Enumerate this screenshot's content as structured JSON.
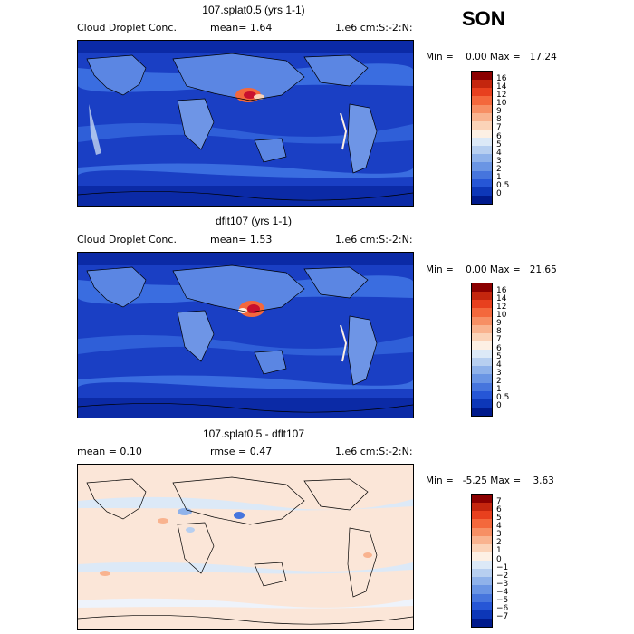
{
  "season": "SON",
  "panels": [
    {
      "title": "107.splat0.5 (yrs 1-1)",
      "left_label": "Cloud Droplet Conc.",
      "stat": "mean=   1.64",
      "units": "1.e6 cm:S:-2:N:",
      "minmax": "Min =    0.00 Max =   17.24",
      "colorbar": {
        "labels": [
          "16",
          "14",
          "12",
          "10",
          "9",
          "8",
          "7",
          "6",
          "5",
          "4",
          "3",
          "2",
          "1",
          "0.5",
          "0"
        ],
        "colors": [
          "#8b0000",
          "#c4260e",
          "#e8401e",
          "#f4683c",
          "#f78f64",
          "#f9b38f",
          "#fbd3b8",
          "#fdf0e4",
          "#dce9f7",
          "#b7cff0",
          "#8fb2ea",
          "#6a95e4",
          "#4675dd",
          "#2656d6",
          "#0d37b8",
          "#001a8c"
        ]
      }
    },
    {
      "title": "dflt107 (yrs 1-1)",
      "left_label": "Cloud Droplet Conc.",
      "stat": "mean=   1.53",
      "units": "1.e6 cm:S:-2:N:",
      "minmax": "Min =    0.00 Max =   21.65",
      "colorbar": {
        "labels": [
          "16",
          "14",
          "12",
          "10",
          "9",
          "8",
          "7",
          "6",
          "5",
          "4",
          "3",
          "2",
          "1",
          "0.5",
          "0"
        ],
        "colors": [
          "#8b0000",
          "#c4260e",
          "#e8401e",
          "#f4683c",
          "#f78f64",
          "#f9b38f",
          "#fbd3b8",
          "#fdf0e4",
          "#dce9f7",
          "#b7cff0",
          "#8fb2ea",
          "#6a95e4",
          "#4675dd",
          "#2656d6",
          "#0d37b8",
          "#001a8c"
        ]
      }
    },
    {
      "title": "107.splat0.5 - dflt107",
      "left_label": "mean =    0.10",
      "stat": "rmse =    0.47",
      "units": "1.e6 cm:S:-2:N:",
      "minmax": "Min =   -5.25 Max =    3.63",
      "colorbar": {
        "labels": [
          "7",
          "6",
          "5",
          "4",
          "3",
          "2",
          "1",
          "0",
          "−1",
          "−2",
          "−3",
          "−4",
          "−5",
          "−6",
          "−7"
        ],
        "colors": [
          "#8b0000",
          "#c4260e",
          "#e8401e",
          "#f4683c",
          "#f78f64",
          "#f9b38f",
          "#fbd3b8",
          "#fdf0e4",
          "#dce9f7",
          "#b7cff0",
          "#8fb2ea",
          "#6a95e4",
          "#4675dd",
          "#2656d6",
          "#0d37b8",
          "#001a8c"
        ]
      }
    }
  ],
  "colors": {
    "ocean_deep": "#1a3fc4",
    "ocean_mid": "#2f5fd8",
    "land_light": "#6e95e6",
    "high_conc": "#c8102e",
    "diff_bg": "#fbe6d8",
    "coast": "#000000"
  }
}
